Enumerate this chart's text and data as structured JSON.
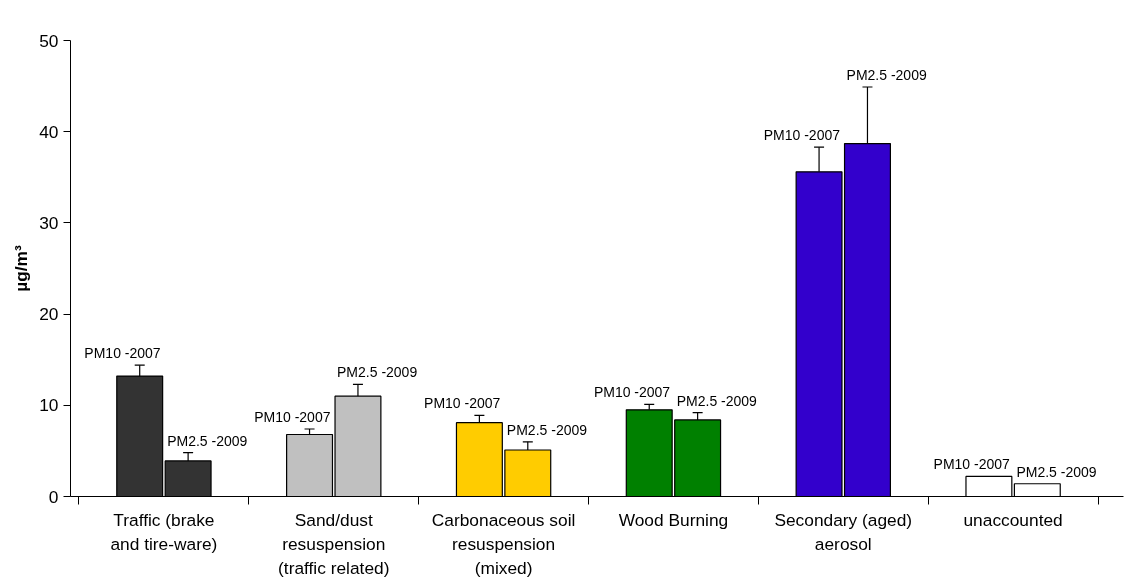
{
  "chart_data": {
    "type": "bar",
    "ylabel": "µg/m³",
    "categories": [
      "Traffic (brake and tire-ware)",
      "Sand/dust resuspension (traffic related)",
      "Carbonaceous soil resuspension (mixed)",
      "Wood Burning",
      "Secondary (aged) aerosol",
      "unaccounted"
    ],
    "series": [
      {
        "name": "PM10 -2007",
        "colors": [
          "#333333",
          "#c0c0c0",
          "#ffcc00",
          "#008000",
          "#3300cc",
          "#ffffff"
        ],
        "values": [
          13.2,
          6.8,
          8.1,
          9.5,
          35.6,
          2.2
        ],
        "errors": [
          1.2,
          0.6,
          0.8,
          0.6,
          2.7,
          null
        ]
      },
      {
        "name": "PM2.5 -2009",
        "colors": [
          "#333333",
          "#c0c0c0",
          "#ffcc00",
          "#008000",
          "#3300cc",
          "#ffffff"
        ],
        "values": [
          3.9,
          11.0,
          5.1,
          8.4,
          38.7,
          1.4
        ],
        "errors": [
          0.9,
          1.3,
          0.9,
          0.8,
          6.2,
          null
        ]
      }
    ],
    "ylim": [
      0,
      50
    ],
    "yticks": [
      0,
      10,
      20,
      30,
      40,
      50
    ],
    "grid": false,
    "legend": false
  }
}
